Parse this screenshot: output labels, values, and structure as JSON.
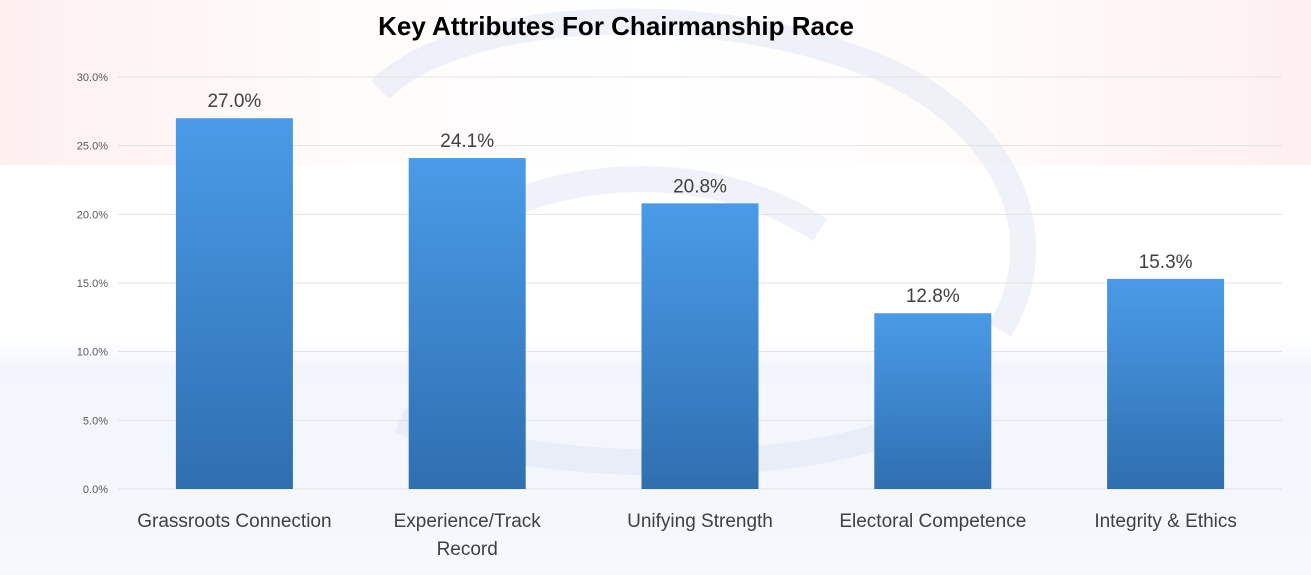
{
  "chart_data": {
    "type": "bar",
    "title": "Key Attributes For Chairmanship Race",
    "xlabel": "",
    "ylabel": "",
    "categories": [
      [
        "Grassroots Connection"
      ],
      [
        "Experience/Track",
        "Record"
      ],
      [
        "Unifying Strength"
      ],
      [
        "Electoral Competence"
      ],
      [
        "Integrity & Ethics"
      ]
    ],
    "values": [
      27.0,
      24.1,
      20.8,
      12.8,
      15.3
    ],
    "data_labels": [
      "27.0%",
      "24.1%",
      "20.8%",
      "12.8%",
      "15.3%"
    ],
    "ylim": [
      0,
      30
    ],
    "yticks": [
      "0.0%",
      "5.0%",
      "10.0%",
      "15.0%",
      "20.0%",
      "25.0%",
      "30.0%"
    ],
    "grid": true,
    "legend": "none",
    "colors": {
      "bar_top": "#4A9BE8",
      "bar_bottom": "#2F6FB0",
      "grid": "#E3E3E3",
      "tick_text": "#595959",
      "label_text": "#404040",
      "title_text": "#000000"
    }
  }
}
